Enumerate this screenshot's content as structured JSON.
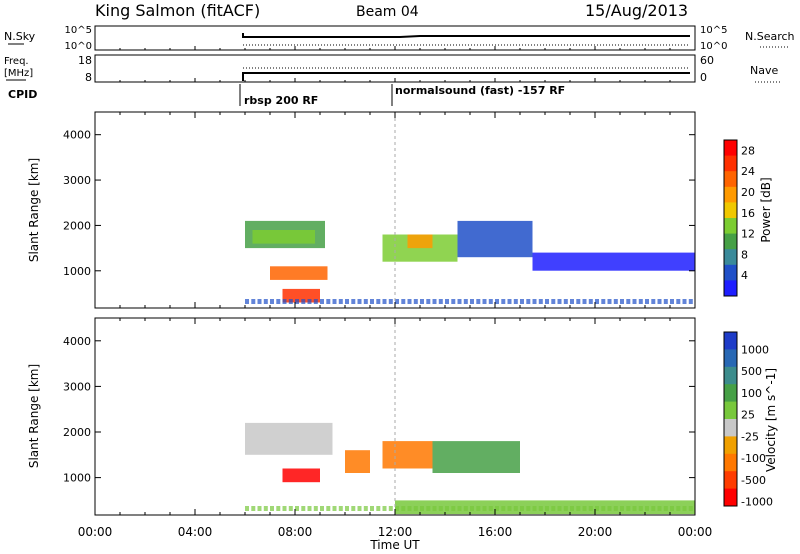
{
  "header": {
    "station": "King Salmon (fitACF)",
    "beam": "Beam 04",
    "date": "15/Aug/2013"
  },
  "colors": {
    "axis": "#000000",
    "power_scale": [
      "#1e1eff",
      "#2050c8",
      "#3a8a9a",
      "#46a046",
      "#7ccd32",
      "#f0c800",
      "#ff9a00",
      "#ff6400",
      "#ff3000",
      "#ff0000"
    ],
    "velocity_scale": [
      "#1e3cc8",
      "#2868b4",
      "#3c8c8c",
      "#46a046",
      "#78c83c",
      "#c8c8c8",
      "#f0a000",
      "#ff7800",
      "#ff3c00",
      "#ff0000"
    ]
  },
  "nsky_panel": {
    "left_label": "N.Sky",
    "left_ticks": [
      "10^5",
      "10^0"
    ],
    "right_ticks": [
      "10^5",
      "10^0"
    ],
    "right_label": "N.Search"
  },
  "freq_panel": {
    "left_label_1": "Freq.",
    "left_label_2": "[MHz]",
    "left_ticks": [
      "18",
      "8"
    ],
    "right_ticks": [
      "60",
      "0"
    ],
    "right_label": "Nave"
  },
  "cpid": {
    "label": "CPID",
    "segments": [
      {
        "start_hour": 6.0,
        "text": "rbsp 200 RF"
      },
      {
        "start_hour": 12.0,
        "text": "normalsound (fast) -157 RF"
      }
    ]
  },
  "chart_data": [
    {
      "type": "heatmap",
      "panel": "power",
      "ylabel": "Slant Range [km]",
      "x_range_hours": [
        0,
        24
      ],
      "ylim": [
        180,
        4500
      ],
      "yticks": [
        1000,
        2000,
        3000,
        4000
      ],
      "colorbar_label": "Power [dB]",
      "colorbar_ticks": [
        "4",
        "8",
        "12",
        "16",
        "20",
        "24",
        "28"
      ],
      "data_start_hour": 6.0,
      "regions": [
        {
          "t": [
            6.0,
            9.2
          ],
          "r": [
            1500,
            2100
          ],
          "color_index": 3
        },
        {
          "t": [
            6.3,
            8.8
          ],
          "r": [
            1600,
            1900
          ],
          "color_index": 4
        },
        {
          "t": [
            7.0,
            9.3
          ],
          "r": [
            800,
            1100
          ],
          "color_index": 7
        },
        {
          "t": [
            7.5,
            9.0
          ],
          "r": [
            300,
            600
          ],
          "color_index": 8
        },
        {
          "t": [
            11.5,
            14.5
          ],
          "r": [
            1200,
            1800
          ],
          "color_index": 4
        },
        {
          "t": [
            12.5,
            13.5
          ],
          "r": [
            1500,
            1800
          ],
          "color_index": 6
        },
        {
          "t": [
            14.5,
            17.5
          ],
          "r": [
            1300,
            2100
          ],
          "color_index": 1
        },
        {
          "t": [
            17.5,
            24.0
          ],
          "r": [
            1000,
            1400
          ],
          "color_index": 0
        }
      ]
    },
    {
      "type": "heatmap",
      "panel": "velocity",
      "xlabel": "Time UT",
      "ylabel": "Slant Range [km]",
      "x_range_hours": [
        0,
        24
      ],
      "xtick_labels": [
        "00:00",
        "04:00",
        "08:00",
        "12:00",
        "16:00",
        "20:00",
        "00:00"
      ],
      "ylim": [
        180,
        4500
      ],
      "yticks": [
        1000,
        2000,
        3000,
        4000
      ],
      "colorbar_label": "Velocity [m s^-1]",
      "colorbar_ticks": [
        "1000",
        "500",
        "100",
        "25",
        "-25",
        "-100",
        "-500",
        "-1000"
      ],
      "data_start_hour": 6.0,
      "regions": [
        {
          "t": [
            6.0,
            9.5
          ],
          "r": [
            1500,
            2200
          ],
          "color_index": 5
        },
        {
          "t": [
            7.5,
            9.0
          ],
          "r": [
            900,
            1200
          ],
          "color_index": 9
        },
        {
          "t": [
            10.0,
            11.0
          ],
          "r": [
            1100,
            1600
          ],
          "color_index": 7
        },
        {
          "t": [
            11.5,
            13.5
          ],
          "r": [
            1200,
            1800
          ],
          "color_index": 7
        },
        {
          "t": [
            13.5,
            17.0
          ],
          "r": [
            1100,
            1800
          ],
          "color_index": 3
        },
        {
          "t": [
            12.0,
            24.0
          ],
          "r": [
            200,
            500
          ],
          "color_index": 4
        }
      ]
    }
  ]
}
